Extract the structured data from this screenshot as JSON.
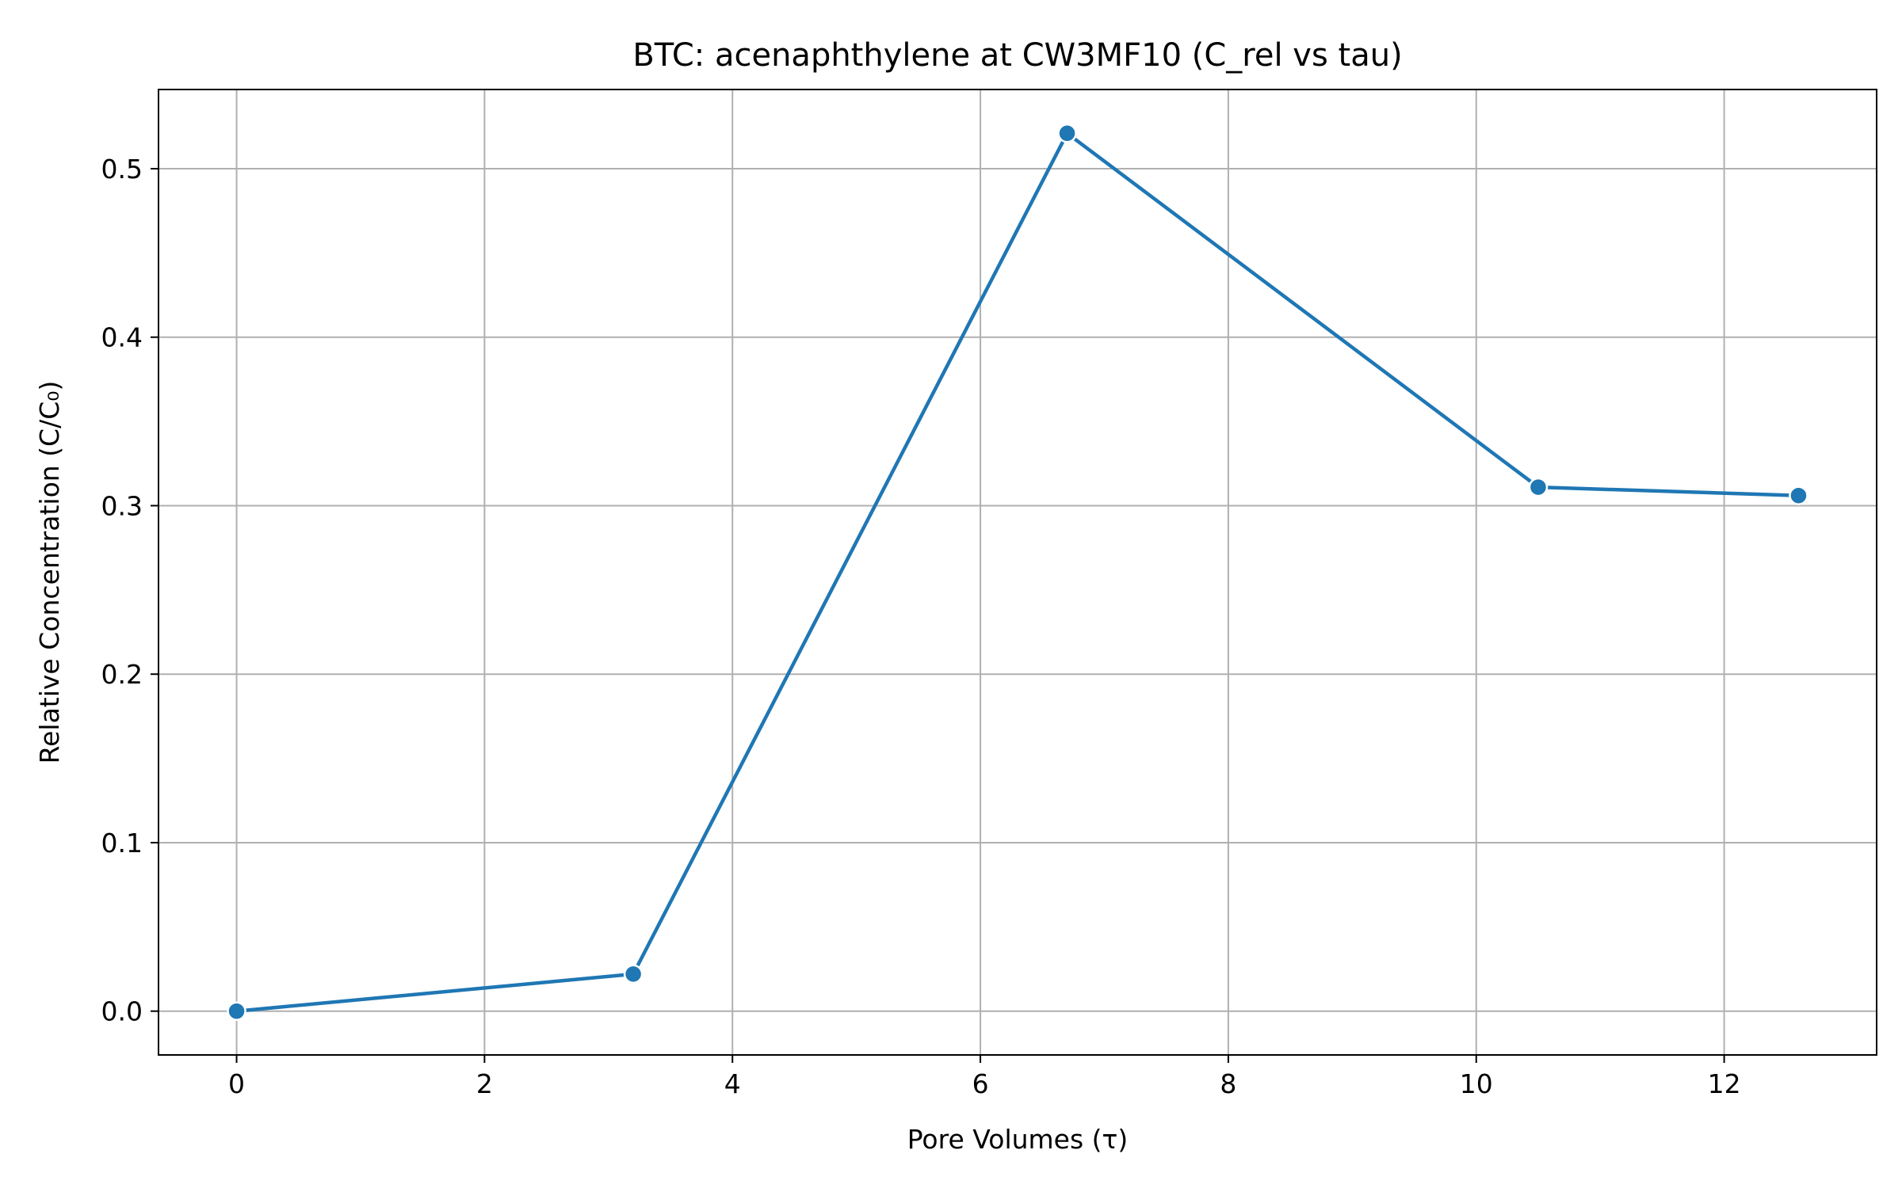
{
  "chart_data": {
    "type": "line",
    "title": "BTC: acenaphthylene at CW3MF10 (C_rel vs tau)",
    "xlabel": "Pore Volumes (τ)",
    "ylabel": "Relative Concentration (C/C₀)",
    "x": [
      0.0,
      3.2,
      6.7,
      10.5,
      12.6
    ],
    "series": [
      {
        "values": [
          0.0,
          0.022,
          0.521,
          0.311,
          0.306
        ]
      }
    ],
    "xlim": [
      -0.63,
      13.23
    ],
    "ylim": [
      -0.026,
      0.547
    ],
    "xticks": [
      0,
      2,
      4,
      6,
      8,
      10,
      12
    ],
    "yticks": [
      0.0,
      0.1,
      0.2,
      0.3,
      0.4,
      0.5
    ],
    "xtick_labels": [
      "0",
      "2",
      "4",
      "6",
      "8",
      "10",
      "12"
    ],
    "ytick_labels": [
      "0.0",
      "0.1",
      "0.2",
      "0.3",
      "0.4",
      "0.5"
    ],
    "grid": true,
    "legend": "none",
    "colors": {
      "line": "#1f77b4",
      "grid": "#b0b0b0",
      "axes": "#000000",
      "marker_edge": "#ffffff"
    }
  }
}
